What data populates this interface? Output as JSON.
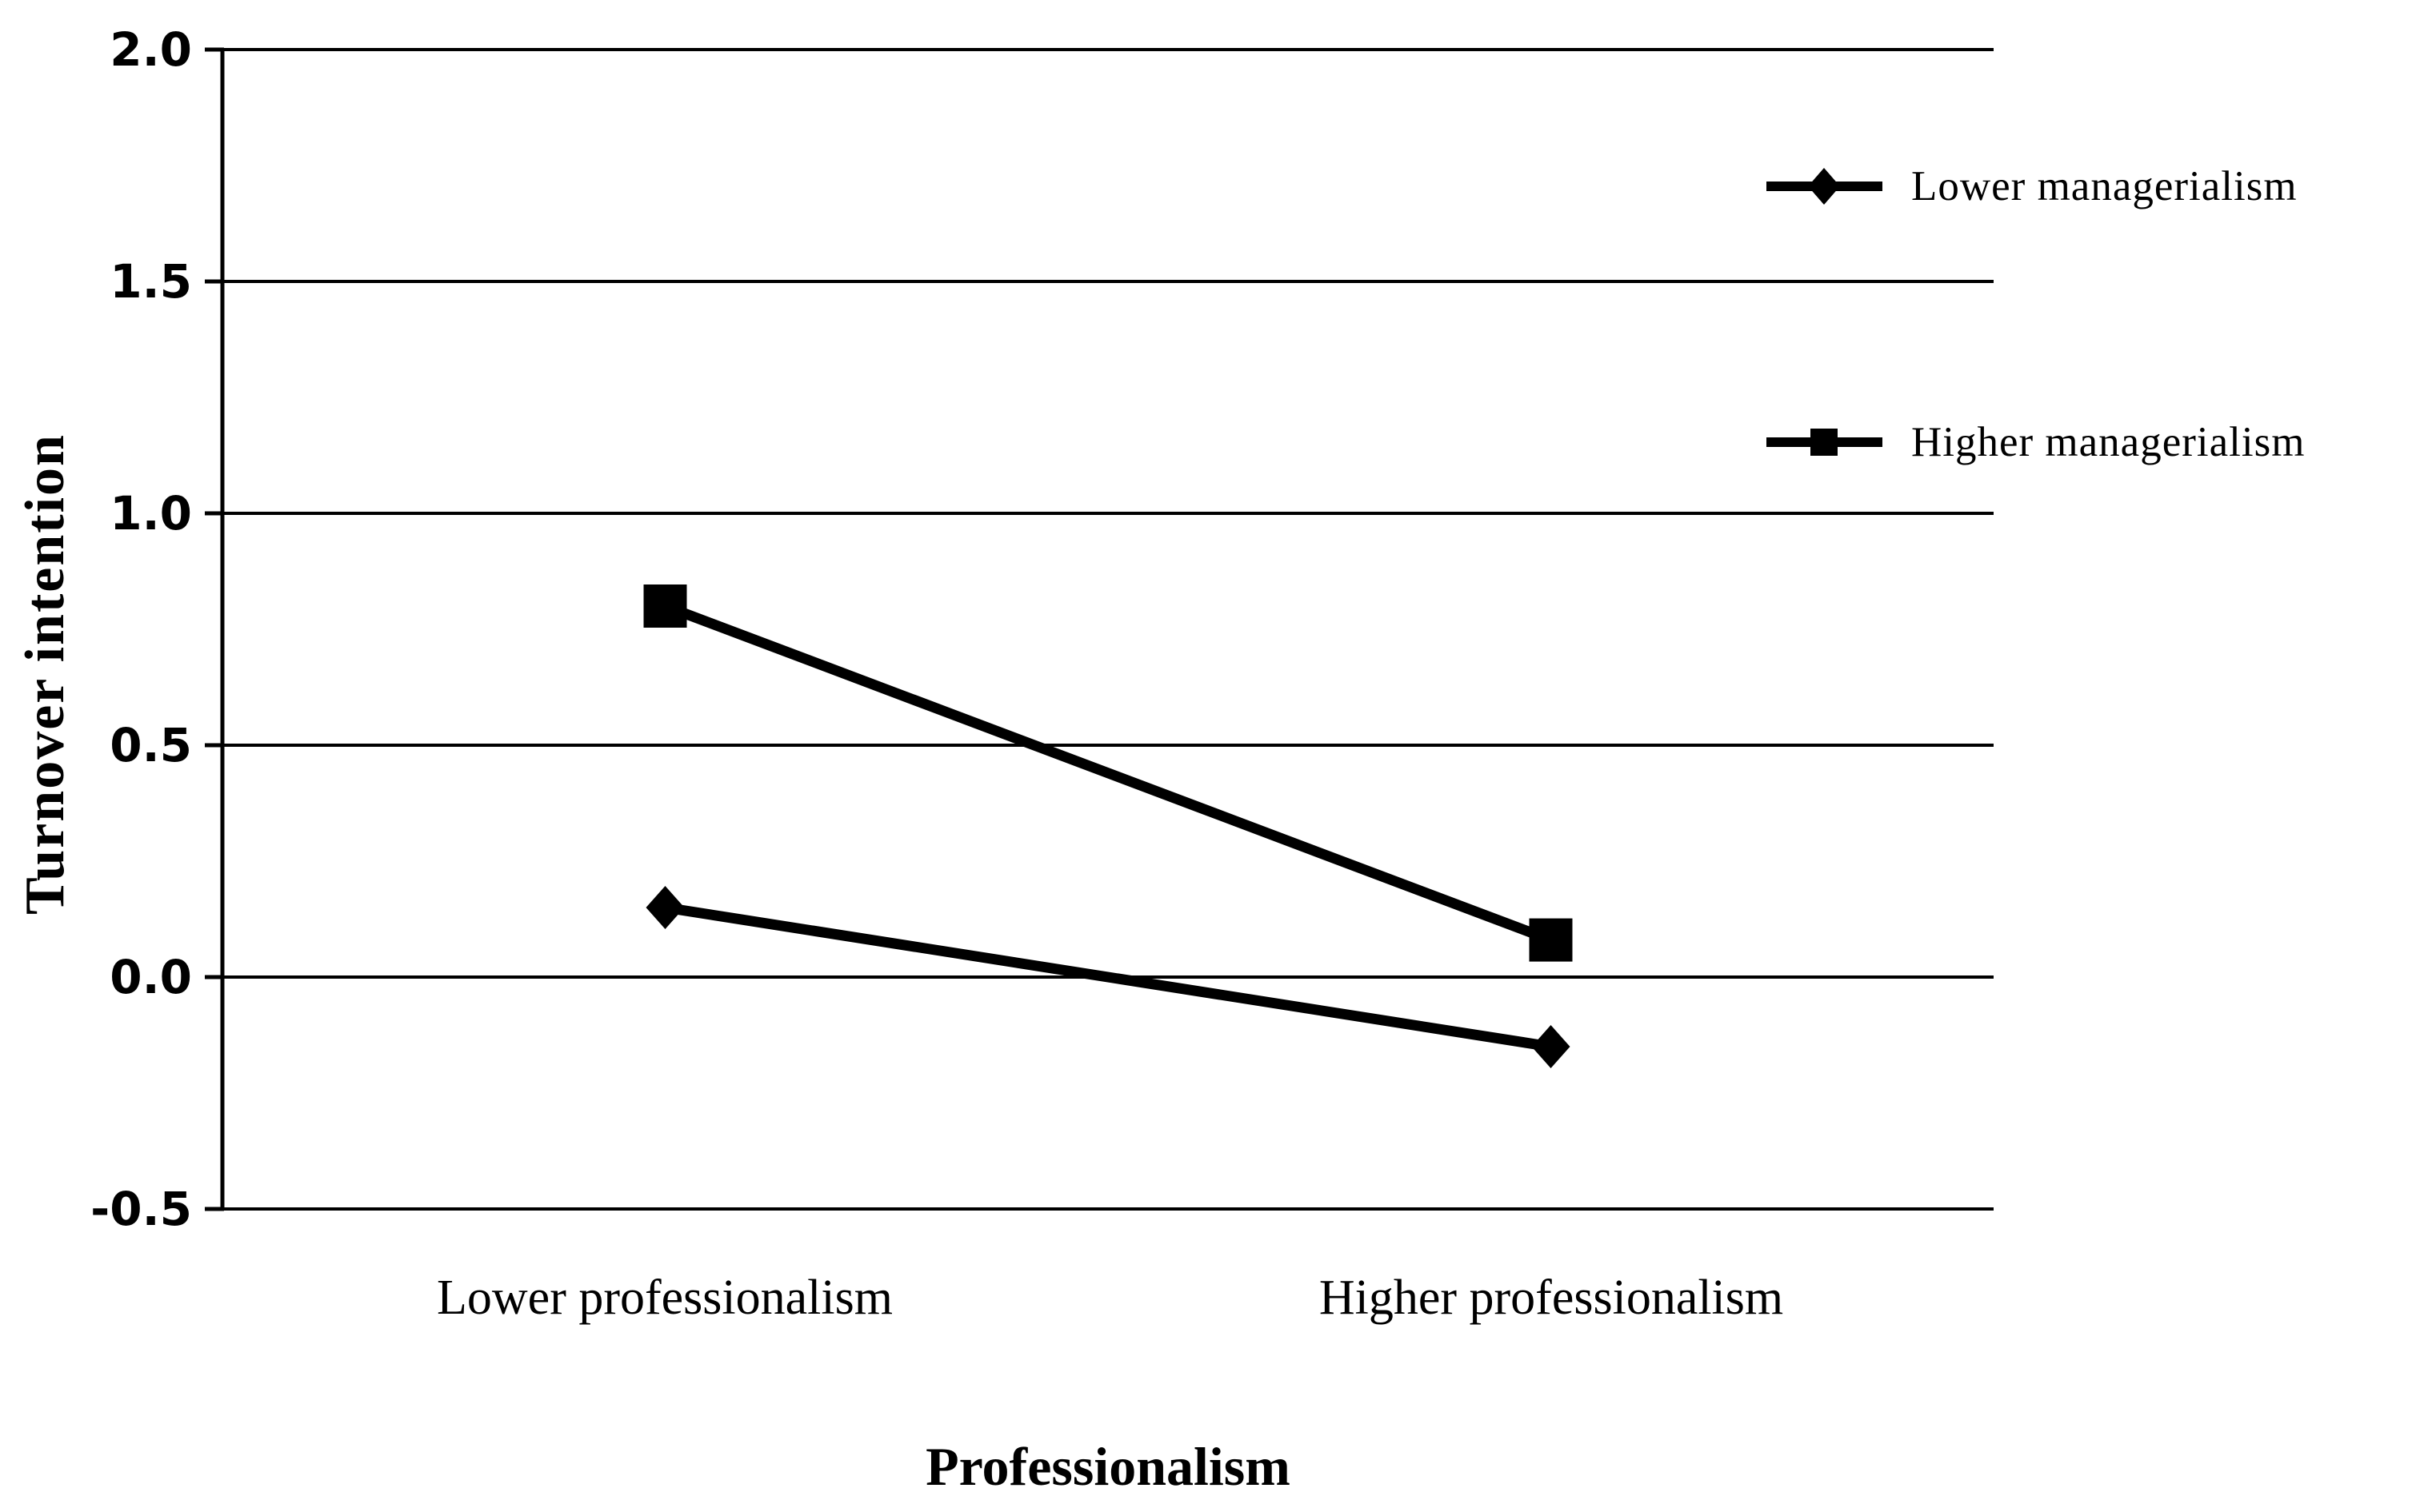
{
  "chart_data": {
    "type": "line",
    "title": "",
    "categories": [
      "Lower professionalism",
      "Higher professionalism"
    ],
    "series": [
      {
        "name": "Lower managerialism",
        "marker": "diamond",
        "values": [
          0.15,
          -0.15
        ]
      },
      {
        "name": "Higher managerialism",
        "marker": "square",
        "values": [
          0.8,
          0.08
        ]
      }
    ],
    "xlabel": "Professionalism",
    "ylabel": "Turnover intention",
    "ylim": [
      -0.5,
      2.0
    ],
    "ytick_step": 0.5,
    "ytick_labels": [
      "2.0",
      "1.5",
      "1.0",
      "0.5",
      "0.0",
      "-0.5"
    ],
    "grid": true,
    "legend_position": "right-top",
    "colors": {
      "series": "#000000",
      "grid": "#000000",
      "text": "#000000",
      "background": "#ffffff"
    }
  }
}
